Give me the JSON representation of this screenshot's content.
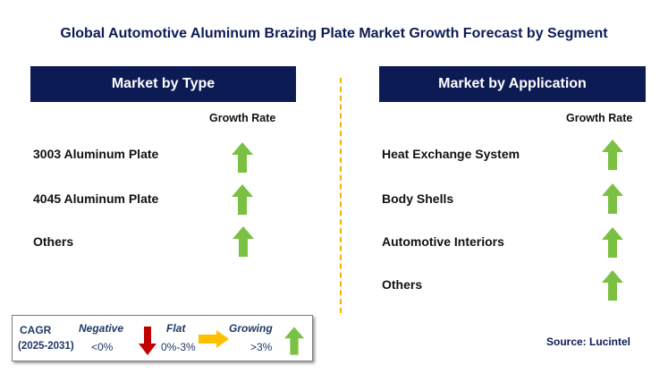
{
  "title": "Global Automotive Aluminum Brazing Plate Market Growth Forecast by Segment",
  "left": {
    "header": "Market by Type",
    "growth_rate_label": "Growth Rate",
    "items": [
      "3003 Aluminum Plate",
      "4045 Aluminum Plate",
      "Others"
    ]
  },
  "right": {
    "header": "Market by Application",
    "growth_rate_label": "Growth Rate",
    "items": [
      "Heat Exchange System",
      "Body Shells",
      "Automotive Interiors",
      "Others"
    ]
  },
  "arrow_color": "#7ac143",
  "header_color": "#0d1b55",
  "legend": {
    "cagr": "CAGR",
    "period": "(2025-2031)",
    "negative": "Negative",
    "negative_value": "<0%",
    "flat": "Flat",
    "flat_value": "0%-3%",
    "growing": "Growing",
    "growing_value": ">3%"
  },
  "source": "Source: Lucintel"
}
